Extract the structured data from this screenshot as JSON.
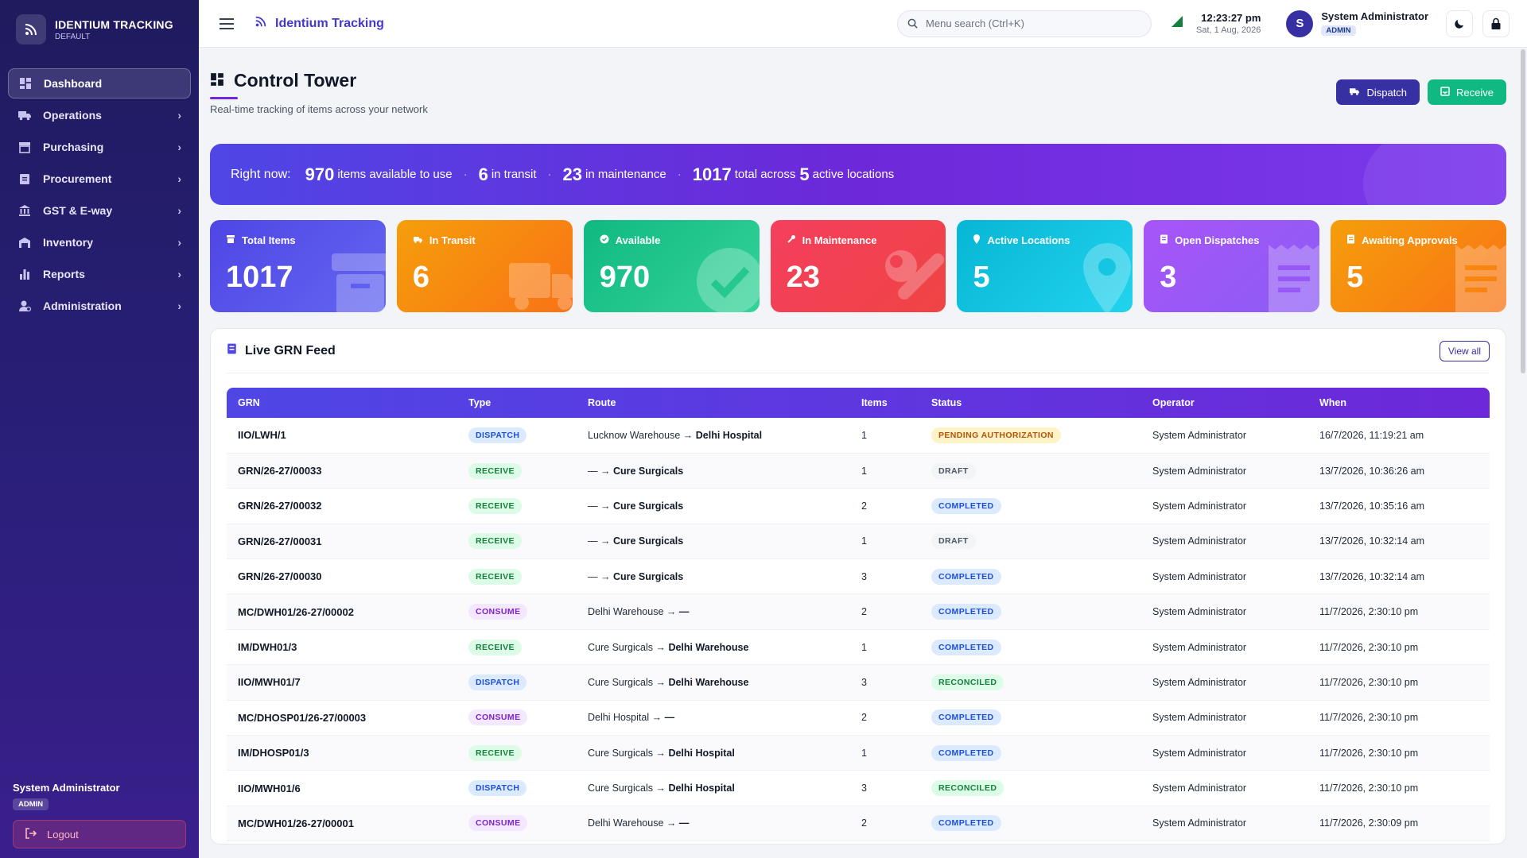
{
  "colors": {
    "accent": "#4f46e5",
    "sidebar": "#2a1f7a",
    "success": "#10b981"
  },
  "brand": {
    "title": "IDENTIUM TRACKING",
    "subtitle": "DEFAULT",
    "icon": "rss-icon"
  },
  "sidebar": {
    "items": [
      {
        "label": "Dashboard",
        "icon": "dashboard-icon",
        "active": true
      },
      {
        "label": "Operations",
        "icon": "truck-icon"
      },
      {
        "label": "Purchasing",
        "icon": "store-icon"
      },
      {
        "label": "Procurement",
        "icon": "clipboard-icon"
      },
      {
        "label": "GST & E-way",
        "icon": "bank-icon"
      },
      {
        "label": "Inventory",
        "icon": "warehouse-icon"
      },
      {
        "label": "Reports",
        "icon": "bar-chart-icon"
      },
      {
        "label": "Administration",
        "icon": "admin-icon"
      }
    ],
    "user_name": "System Administrator",
    "user_role": "ADMIN",
    "logout_label": "Logout"
  },
  "topbar": {
    "app_name": "Identium Tracking",
    "search_placeholder": "Menu search (Ctrl+K)",
    "time": "12:23:27 pm",
    "date": "Sat, 1 Aug, 2026",
    "avatar_initial": "S",
    "user_name": "System Administrator",
    "user_role": "ADMIN"
  },
  "page": {
    "title": "Control Tower",
    "subtitle": "Real-time tracking of items across your network",
    "dispatch_label": "Dispatch",
    "receive_label": "Receive"
  },
  "banner": {
    "lead": "Right now:",
    "available": "970",
    "available_label": "items available to use",
    "transit": "6",
    "transit_label": "in transit",
    "maintenance": "23",
    "maintenance_label": "in maintenance",
    "total": "1017",
    "total_label": "total across",
    "locations": "5",
    "locations_label": "active locations"
  },
  "stats": [
    {
      "label": "Total Items",
      "value": "1017",
      "color": "#4f46e5",
      "icon": "archive-icon"
    },
    {
      "label": "In Transit",
      "value": "6",
      "color": "#f59e0b",
      "icon": "truck-icon"
    },
    {
      "label": "Available",
      "value": "970",
      "color": "#10b981",
      "icon": "check-circle-icon"
    },
    {
      "label": "In Maintenance",
      "value": "23",
      "color": "#f43f5e",
      "icon": "wrench-icon"
    },
    {
      "label": "Active Locations",
      "value": "5",
      "color": "#06b6d4",
      "icon": "map-pin-icon"
    },
    {
      "label": "Open Dispatches",
      "value": "3",
      "color": "#a855f7",
      "icon": "receipt-icon"
    },
    {
      "label": "Awaiting Approvals",
      "value": "5",
      "color": "#f59e0b",
      "icon": "receipt-icon"
    }
  ],
  "feed": {
    "title": "Live GRN Feed",
    "view_all": "View all",
    "columns": [
      "GRN",
      "Type",
      "Route",
      "Items",
      "Status",
      "Operator",
      "When"
    ],
    "rows": [
      {
        "grn": "IIO/LWH/1",
        "type": "DISPATCH",
        "from": "Lucknow Warehouse",
        "to": "Delhi Hospital",
        "items": "1",
        "status": "PENDING AUTHORIZATION",
        "operator": "System Administrator",
        "when": "16/7/2026, 11:19:21 am"
      },
      {
        "grn": "GRN/26-27/00033",
        "type": "RECEIVE",
        "from": "—",
        "to": "Cure Surgicals",
        "items": "1",
        "status": "DRAFT",
        "operator": "System Administrator",
        "when": "13/7/2026, 10:36:26 am"
      },
      {
        "grn": "GRN/26-27/00032",
        "type": "RECEIVE",
        "from": "—",
        "to": "Cure Surgicals",
        "items": "2",
        "status": "COMPLETED",
        "operator": "System Administrator",
        "when": "13/7/2026, 10:35:16 am"
      },
      {
        "grn": "GRN/26-27/00031",
        "type": "RECEIVE",
        "from": "—",
        "to": "Cure Surgicals",
        "items": "1",
        "status": "DRAFT",
        "operator": "System Administrator",
        "when": "13/7/2026, 10:32:14 am"
      },
      {
        "grn": "GRN/26-27/00030",
        "type": "RECEIVE",
        "from": "—",
        "to": "Cure Surgicals",
        "items": "3",
        "status": "COMPLETED",
        "operator": "System Administrator",
        "when": "13/7/2026, 10:32:14 am"
      },
      {
        "grn": "MC/DWH01/26-27/00002",
        "type": "CONSUME",
        "from": "Delhi Warehouse",
        "to": "—",
        "items": "2",
        "status": "COMPLETED",
        "operator": "System Administrator",
        "when": "11/7/2026, 2:30:10 pm"
      },
      {
        "grn": "IM/DWH01/3",
        "type": "RECEIVE",
        "from": "Cure Surgicals",
        "to": "Delhi Warehouse",
        "items": "1",
        "status": "COMPLETED",
        "operator": "System Administrator",
        "when": "11/7/2026, 2:30:10 pm"
      },
      {
        "grn": "IIO/MWH01/7",
        "type": "DISPATCH",
        "from": "Cure Surgicals",
        "to": "Delhi Warehouse",
        "items": "3",
        "status": "RECONCILED",
        "operator": "System Administrator",
        "when": "11/7/2026, 2:30:10 pm"
      },
      {
        "grn": "MC/DHOSP01/26-27/00003",
        "type": "CONSUME",
        "from": "Delhi Hospital",
        "to": "—",
        "items": "2",
        "status": "COMPLETED",
        "operator": "System Administrator",
        "when": "11/7/2026, 2:30:10 pm"
      },
      {
        "grn": "IM/DHOSP01/3",
        "type": "RECEIVE",
        "from": "Cure Surgicals",
        "to": "Delhi Hospital",
        "items": "1",
        "status": "COMPLETED",
        "operator": "System Administrator",
        "when": "11/7/2026, 2:30:10 pm"
      },
      {
        "grn": "IIO/MWH01/6",
        "type": "DISPATCH",
        "from": "Cure Surgicals",
        "to": "Delhi Hospital",
        "items": "3",
        "status": "RECONCILED",
        "operator": "System Administrator",
        "when": "11/7/2026, 2:30:10 pm"
      },
      {
        "grn": "MC/DWH01/26-27/00001",
        "type": "CONSUME",
        "from": "Delhi Warehouse",
        "to": "—",
        "items": "2",
        "status": "COMPLETED",
        "operator": "System Administrator",
        "when": "11/7/2026, 2:30:09 pm"
      }
    ]
  }
}
